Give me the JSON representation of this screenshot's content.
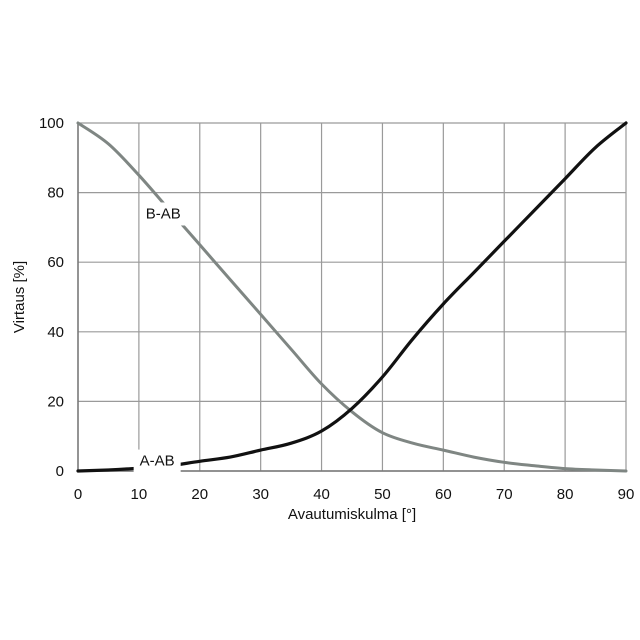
{
  "chart_data": {
    "type": "line",
    "title": "",
    "xlabel": "Avautumiskulma [°]",
    "ylabel": "Virtaus [%]",
    "xlim": [
      0,
      90
    ],
    "ylim": [
      0,
      100
    ],
    "xticks": [
      0,
      10,
      20,
      30,
      40,
      50,
      60,
      70,
      80,
      90
    ],
    "yticks": [
      0,
      20,
      40,
      60,
      80,
      100
    ],
    "grid": true,
    "legend": "none",
    "series": [
      {
        "name": "B-AB",
        "color": "#7f8683",
        "label_at": [
          14,
          74
        ],
        "x": [
          0,
          5,
          10,
          15,
          20,
          25,
          30,
          35,
          40,
          45,
          50,
          55,
          60,
          65,
          70,
          75,
          80,
          85,
          90
        ],
        "y": [
          100,
          94,
          85,
          75,
          65,
          55,
          45,
          35,
          25,
          17,
          11,
          8,
          6,
          4,
          2.5,
          1.5,
          0.7,
          0.3,
          0
        ]
      },
      {
        "name": "A-AB",
        "color": "#111111",
        "label_at": [
          13,
          3
        ],
        "x": [
          0,
          5,
          10,
          15,
          20,
          25,
          30,
          35,
          40,
          45,
          50,
          55,
          60,
          65,
          70,
          75,
          80,
          85,
          90
        ],
        "y": [
          0,
          0.3,
          0.8,
          1.5,
          2.8,
          4,
          6,
          8,
          11.5,
          18,
          27,
          38,
          48,
          57,
          66,
          75,
          84,
          93,
          100
        ]
      }
    ]
  }
}
